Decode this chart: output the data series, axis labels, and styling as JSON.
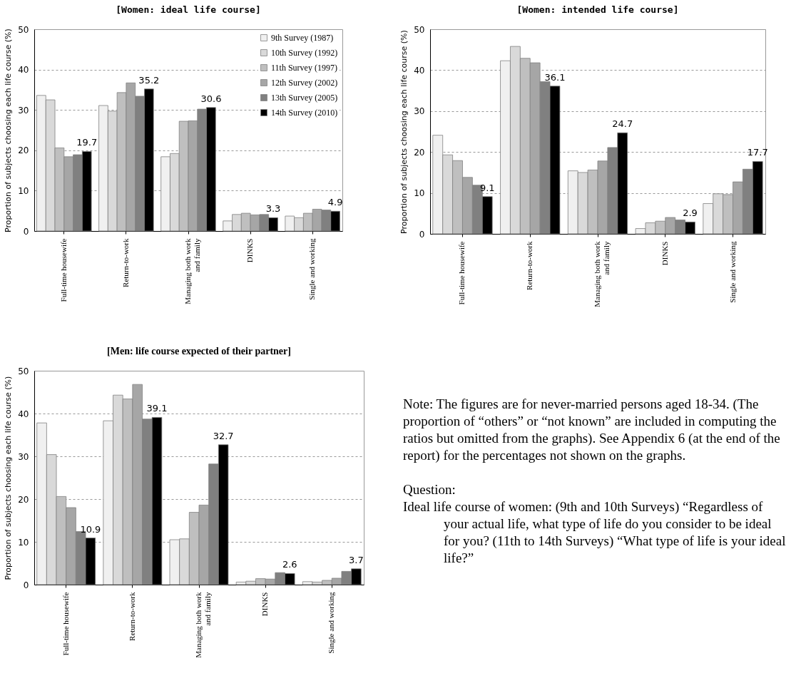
{
  "chart_data": [
    {
      "type": "bar",
      "title": "[Women: ideal life course]",
      "ylabel": "Proportion of subjects choosing each life course (%)",
      "categories": [
        "Full-time housewife",
        "Return-to-work",
        "Managing both work\nand family",
        "DINKS",
        "Single and working"
      ],
      "series": [
        {
          "name": "9th Survey (1987)",
          "color": "#f0f0f0",
          "values": [
            33.6,
            31.1,
            18.4,
            2.5,
            3.7
          ]
        },
        {
          "name": "10th Survey (1992)",
          "color": "#d9d9d9",
          "values": [
            32.5,
            29.7,
            19.2,
            4.1,
            3.3
          ]
        },
        {
          "name": "11th Survey (1997)",
          "color": "#bfbfbf",
          "values": [
            20.6,
            34.3,
            27.2,
            4.4,
            4.4
          ]
        },
        {
          "name": "12th Survey (2002)",
          "color": "#a6a6a6",
          "values": [
            18.4,
            36.7,
            27.3,
            4.0,
            5.4
          ]
        },
        {
          "name": "13th Survey (2005)",
          "color": "#808080",
          "values": [
            18.9,
            33.4,
            30.2,
            4.1,
            5.2
          ]
        },
        {
          "name": "14th Survey (2010)",
          "color": "#000000",
          "values": [
            19.7,
            35.2,
            30.6,
            3.3,
            4.9
          ],
          "value_labels": [
            "19.7",
            "35.2",
            "30.6",
            "3.3",
            "4.9"
          ]
        }
      ],
      "ylim": [
        0,
        50
      ],
      "yticks": [
        0,
        10,
        20,
        30,
        40,
        50
      ],
      "grid": "y",
      "legend": "top right"
    },
    {
      "type": "bar",
      "title": "[Women: intended life course]",
      "ylabel": "Proportion of subjects choosing each life course (%)",
      "categories": [
        "Full-time housewife",
        "Return-to-work",
        "Managing both work\nand family",
        "DINKS",
        "Single and working"
      ],
      "series": [
        {
          "color": "#f0f0f0",
          "values": [
            24.1,
            42.3,
            15.4,
            1.3,
            7.4
          ]
        },
        {
          "color": "#d9d9d9",
          "values": [
            19.3,
            45.8,
            15.0,
            2.7,
            9.8
          ]
        },
        {
          "color": "#bfbfbf",
          "values": [
            17.9,
            42.9,
            15.6,
            3.1,
            9.6
          ]
        },
        {
          "color": "#a6a6a6",
          "values": [
            13.8,
            41.8,
            17.8,
            4.0,
            12.7
          ]
        },
        {
          "color": "#808080",
          "values": [
            11.9,
            37.2,
            21.1,
            3.4,
            15.8
          ]
        },
        {
          "color": "#000000",
          "values": [
            9.1,
            36.1,
            24.7,
            2.9,
            17.7
          ],
          "value_labels": [
            "9.1",
            "36.1",
            "24.7",
            "2.9",
            "17.7"
          ]
        }
      ],
      "ylim": [
        0,
        50
      ],
      "yticks": [
        0,
        10,
        20,
        30,
        40,
        50
      ],
      "grid": "y"
    },
    {
      "type": "bar",
      "title": "[Men: life course expected of their partner]",
      "ylabel": "Proportion of subjects choosing each life course (%)",
      "categories": [
        "Full-time housewife",
        "Return-to-work",
        "Managing both work\nand family",
        "DINKS",
        "Single and working"
      ],
      "series": [
        {
          "color": "#f0f0f0",
          "values": [
            37.8,
            38.3,
            10.5,
            0.6,
            0.7
          ]
        },
        {
          "color": "#d9d9d9",
          "values": [
            30.4,
            44.3,
            10.7,
            0.8,
            0.6
          ]
        },
        {
          "color": "#bfbfbf",
          "values": [
            20.6,
            43.4,
            16.9,
            1.4,
            1.0
          ]
        },
        {
          "color": "#a6a6a6",
          "values": [
            18.0,
            46.8,
            18.6,
            1.3,
            1.5
          ]
        },
        {
          "color": "#808080",
          "values": [
            12.4,
            38.7,
            28.2,
            2.8,
            3.1
          ]
        },
        {
          "color": "#000000",
          "values": [
            10.9,
            39.1,
            32.7,
            2.6,
            3.7
          ],
          "value_labels": [
            "10.9",
            "39.1",
            "32.7",
            "2.6",
            "3.7"
          ]
        }
      ],
      "ylim": [
        0,
        50
      ],
      "yticks": [
        0,
        10,
        20,
        30,
        40,
        50
      ],
      "grid": "y"
    },
    {
      "type": "other",
      "annotations": [
        "Note: The figures are for never-married persons aged 18-34. (The proportion of “others” or “not known” are included in computing the ratios but omitted from the graphs). See Appendix 6 (at the end of the report) for the percentages not shown on the graphs.",
        "Question:",
        "Ideal life course of women: (9th and 10th Surveys) “Regardless of your actual life, what type of life do you consider to be ideal for you? (11th to 14th Surveys) “What type of life is your ideal life?”"
      ]
    }
  ]
}
